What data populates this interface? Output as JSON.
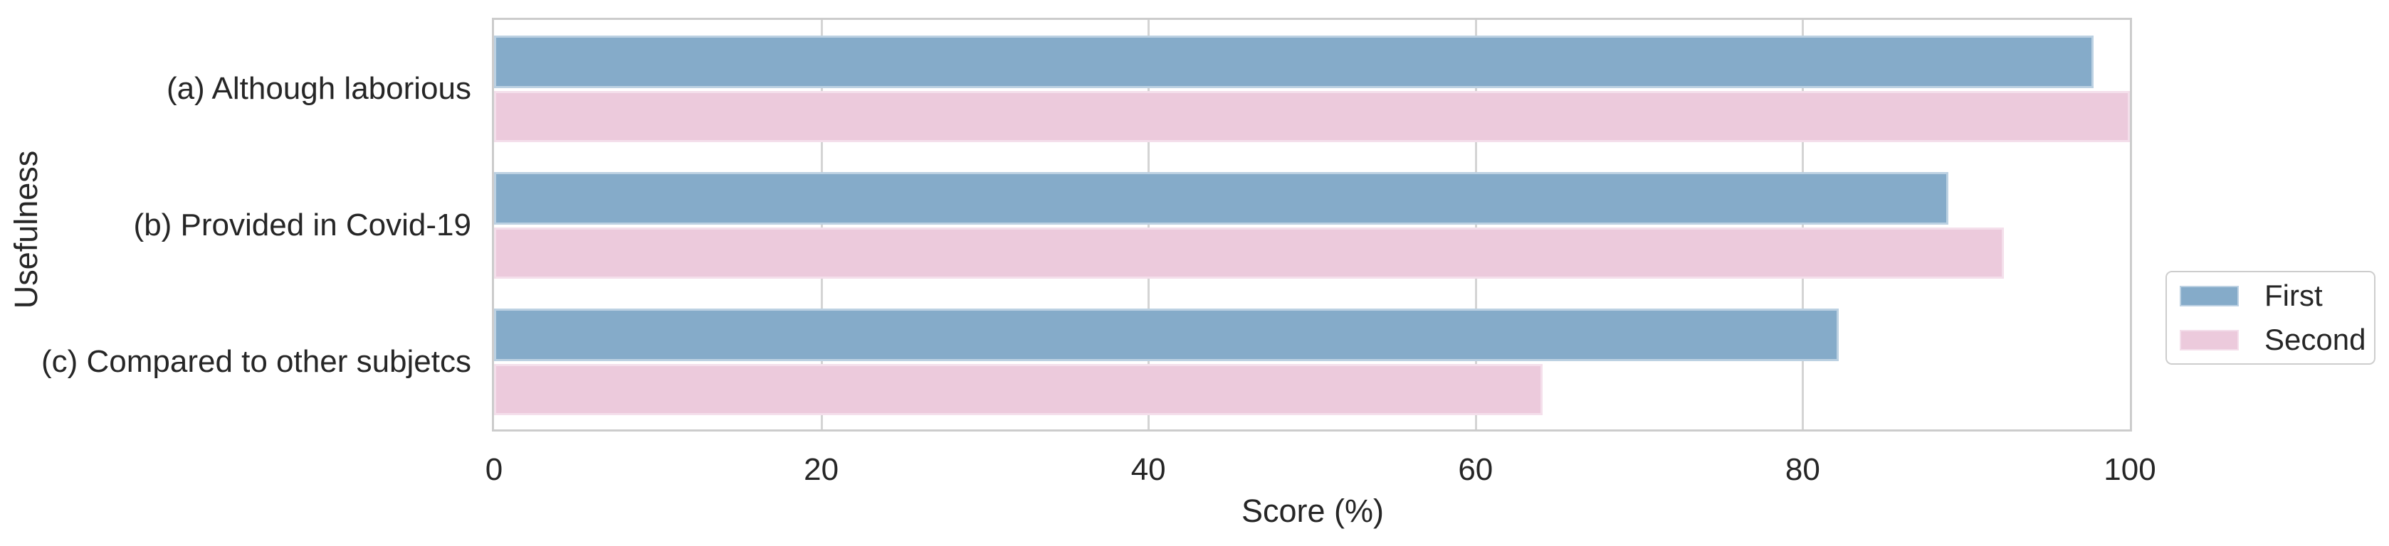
{
  "chart_data": {
    "type": "bar",
    "orientation": "horizontal",
    "title": "",
    "xlabel": "Score (%)",
    "ylabel": "Usefulness",
    "categories": [
      "(a) Although laborious",
      "(b) Provided in Covid-19",
      "(c) Compared to other subjetcs"
    ],
    "series": [
      {
        "name": "First",
        "color": "#85abc9",
        "edge_color": "#bcd1e2",
        "values": [
          97.8,
          88.9,
          82.2
        ]
      },
      {
        "name": "Second",
        "color": "#eccadc",
        "edge_color": "#f4dfeb",
        "values": [
          100,
          92.3,
          64.1
        ]
      }
    ],
    "x_ticks": [
      0,
      20,
      40,
      60,
      80,
      100
    ],
    "xlim": [
      0,
      100
    ],
    "grid": "vertical gridlines at x ticks, light gray, full plot height",
    "legend": {
      "position": "outside right of plot, vertically centered",
      "entries": [
        "First",
        "Second"
      ]
    },
    "colors": {
      "plot_border": "#cccccc",
      "grid": "#d4d4d4",
      "text": "#262626",
      "background": "#ffffff"
    }
  }
}
